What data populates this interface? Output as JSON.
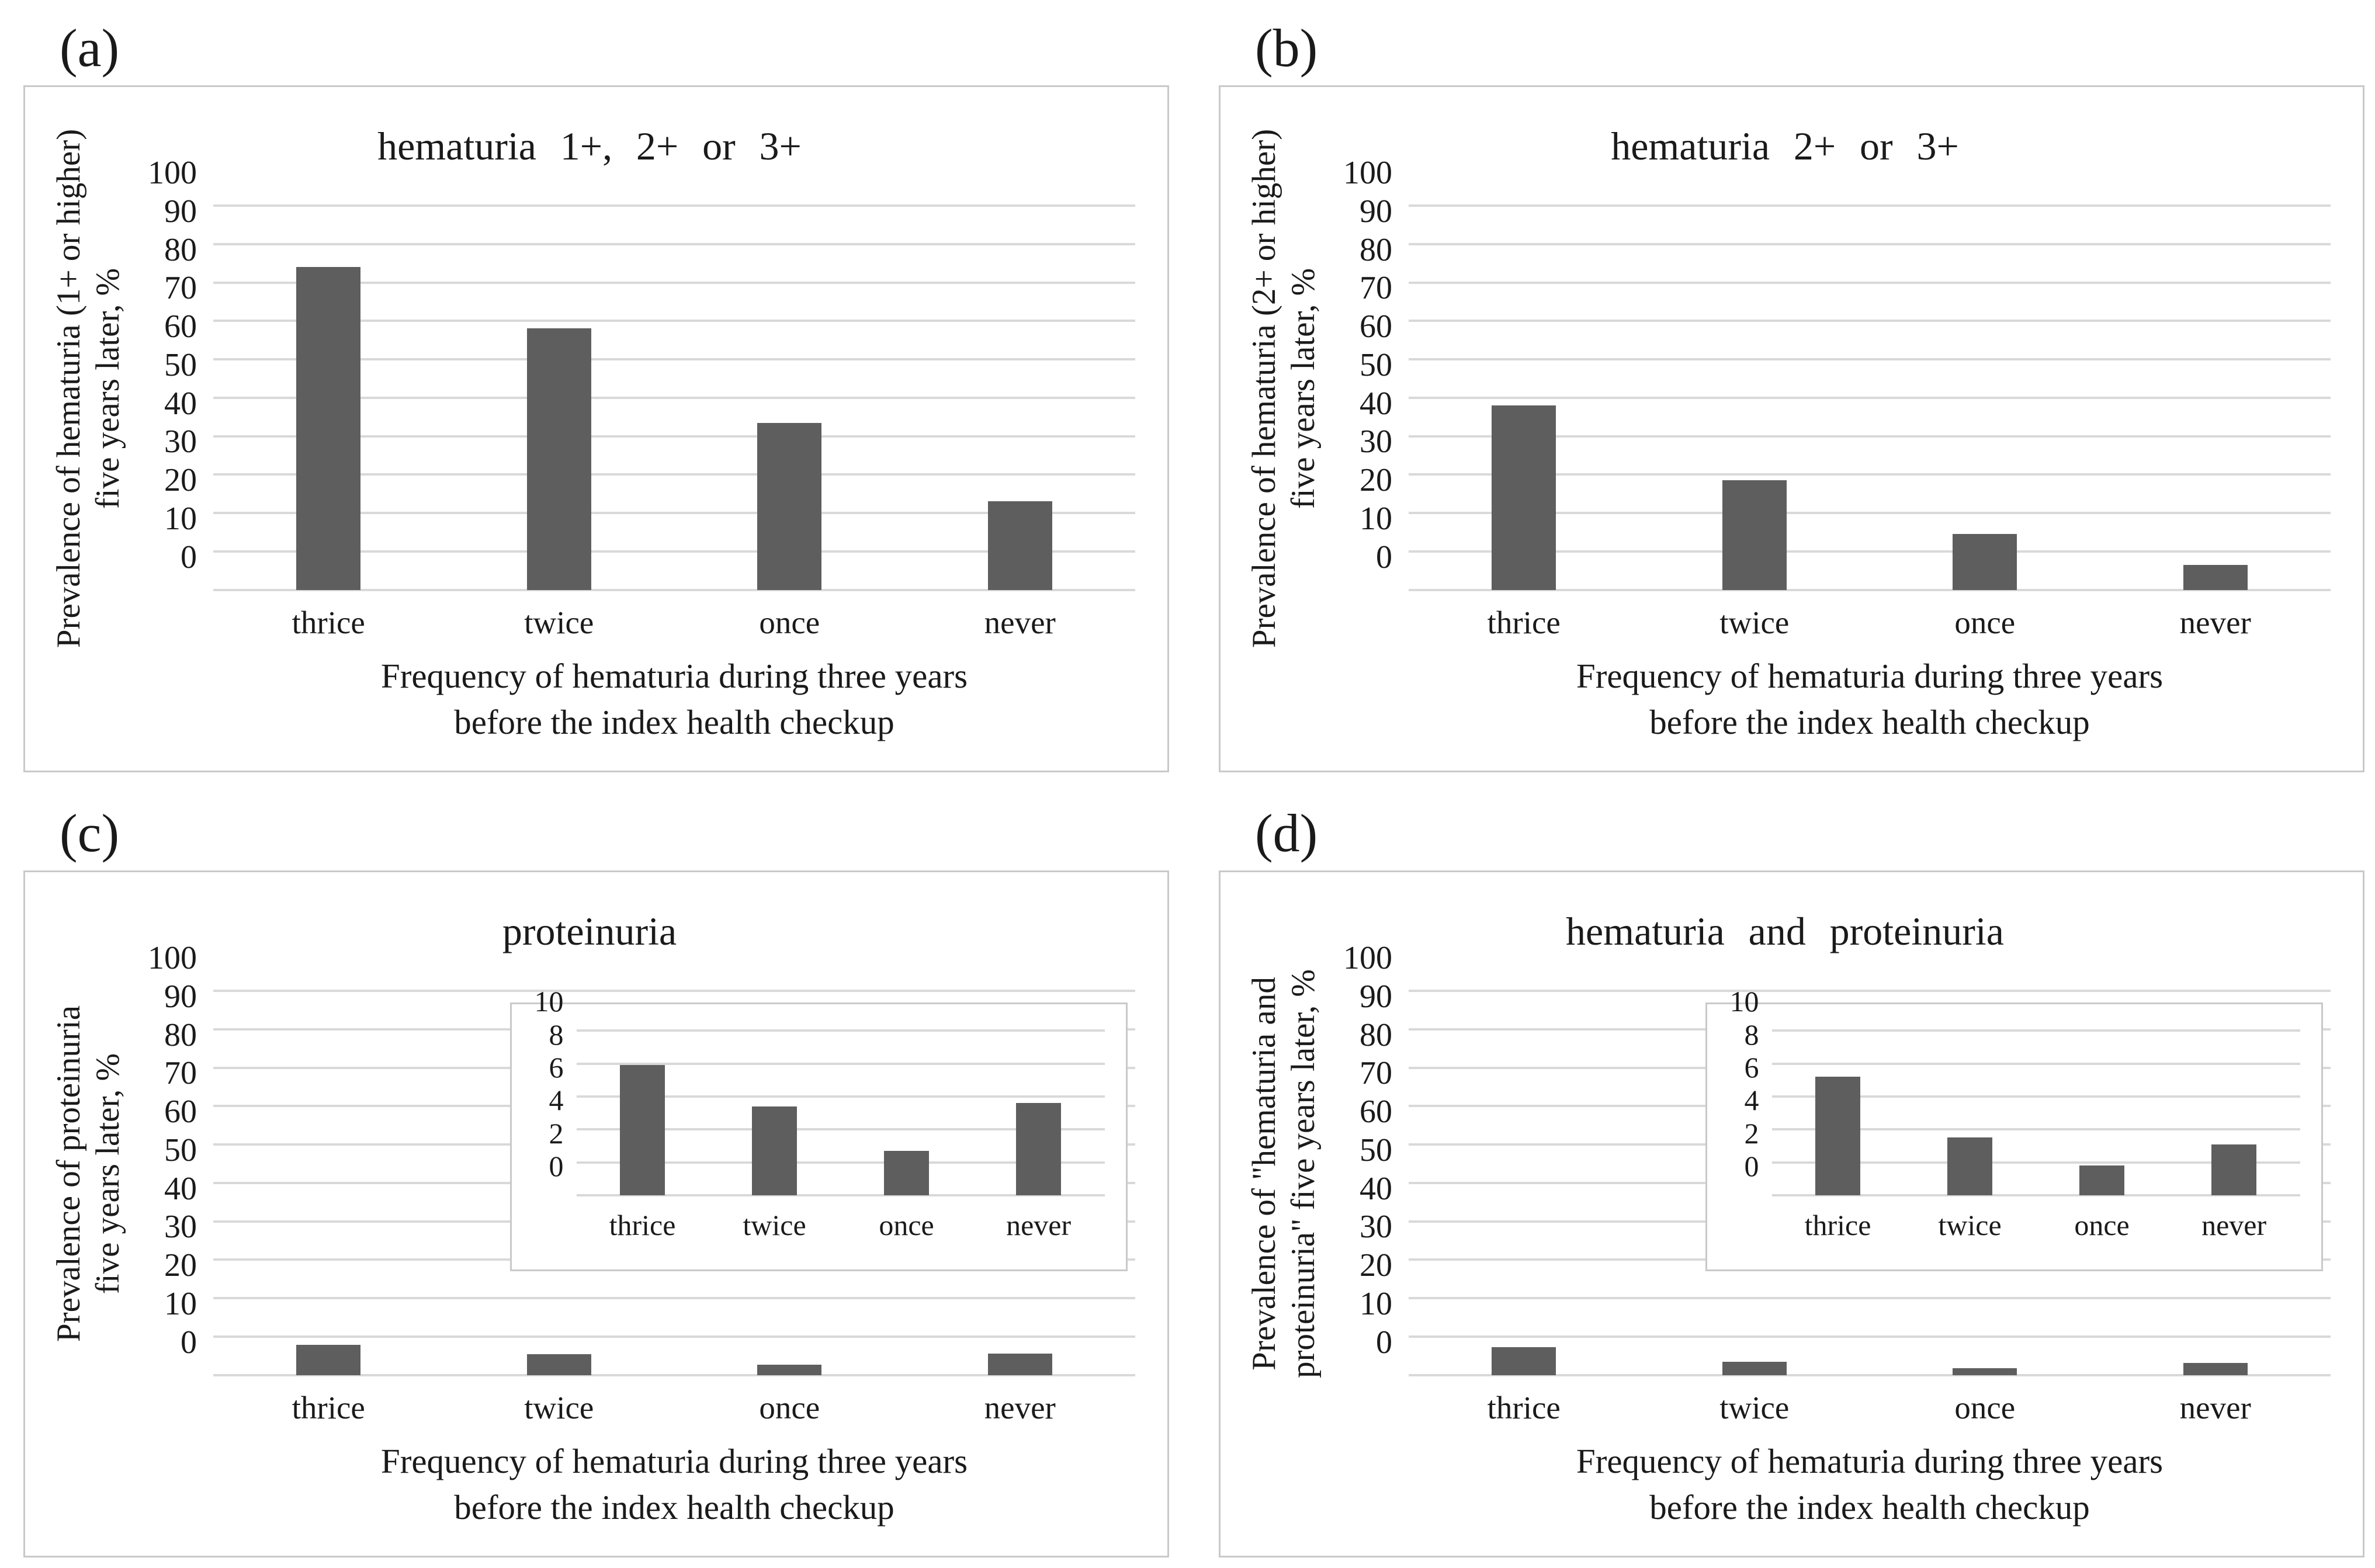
{
  "styles": {
    "bar_color": "#5e5e5e",
    "gridline_color": "#d9d9d9",
    "panel_border_color": "#c9c9c9",
    "text_color": "#1a1a1a",
    "background_color": "#ffffff"
  },
  "chart_data": [
    {
      "type": "bar",
      "panel_label": "(a)",
      "title": "hematuria 1+, 2+ or 3+",
      "ylabel_lines": [
        "Prevalence of hematuria (1+ or higher)",
        "five years later, %"
      ],
      "xlabel_lines": [
        "Frequency of hematuria during three years",
        "before the index health checkup"
      ],
      "categories": [
        "thrice",
        "twice",
        "once",
        "never"
      ],
      "values": [
        84,
        68,
        43.5,
        23
      ],
      "ylim": [
        0,
        100
      ],
      "ytick_step": 10,
      "grid": true,
      "legend": "none"
    },
    {
      "type": "bar",
      "panel_label": "(b)",
      "title": "hematuria 2+ or 3+",
      "ylabel_lines": [
        "Prevalence of hematuria (2+ or higher)",
        "five years later, %"
      ],
      "xlabel_lines": [
        "Frequency of hematuria during three years",
        "before the index health checkup"
      ],
      "categories": [
        "thrice",
        "twice",
        "once",
        "never"
      ],
      "values": [
        48,
        28.5,
        14.5,
        6.5
      ],
      "ylim": [
        0,
        100
      ],
      "ytick_step": 10,
      "grid": true,
      "legend": "none"
    },
    {
      "type": "bar",
      "panel_label": "(c)",
      "title": "proteinuria",
      "ylabel_lines": [
        "Prevalence of proteinuria",
        "five years later, %"
      ],
      "xlabel_lines": [
        "Frequency of hematuria during three years",
        "before the index health checkup"
      ],
      "categories": [
        "thrice",
        "twice",
        "once",
        "never"
      ],
      "values": [
        7.9,
        5.4,
        2.7,
        5.6
      ],
      "ylim": [
        0,
        100
      ],
      "ytick_step": 10,
      "grid": true,
      "legend": "none",
      "inset": {
        "type": "bar",
        "categories": [
          "thrice",
          "twice",
          "once",
          "never"
        ],
        "values": [
          7.9,
          5.4,
          2.7,
          5.6
        ],
        "ylim": [
          0,
          10
        ],
        "ytick_step": 2,
        "grid": true
      }
    },
    {
      "type": "bar",
      "panel_label": "(d)",
      "title": "hematuria and proteinuria",
      "ylabel_lines": [
        "Prevalence of \"hematuria and",
        "proteinuria\" five years later, %"
      ],
      "xlabel_lines": [
        "Frequency of hematuria during three years",
        "before the index health checkup"
      ],
      "categories": [
        "thrice",
        "twice",
        "once",
        "never"
      ],
      "values": [
        7.2,
        3.5,
        1.8,
        3.1
      ],
      "ylim": [
        0,
        100
      ],
      "ytick_step": 10,
      "grid": true,
      "legend": "none",
      "inset": {
        "type": "bar",
        "categories": [
          "thrice",
          "twice",
          "once",
          "never"
        ],
        "values": [
          7.2,
          3.5,
          1.8,
          3.1
        ],
        "ylim": [
          0,
          10
        ],
        "ytick_step": 2,
        "grid": true
      }
    }
  ]
}
